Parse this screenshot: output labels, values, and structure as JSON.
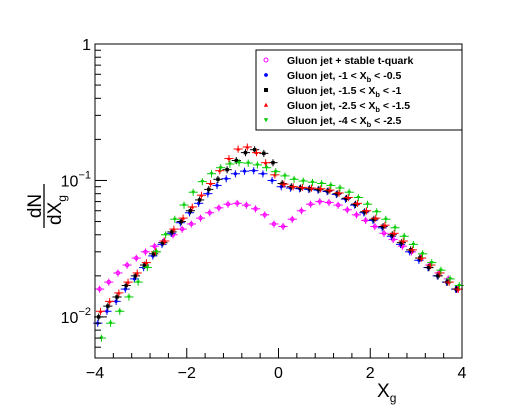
{
  "chart_data": {
    "type": "scatter",
    "title": "",
    "xlabel": {
      "main": "X",
      "sub": "g"
    },
    "ylabel": {
      "num": "dN",
      "den_main": "dX",
      "den_sub": "g"
    },
    "xlim": [
      -4,
      4
    ],
    "ylim": [
      0.005,
      1
    ],
    "yscale": "log",
    "grid": false,
    "legend_position": "top-right",
    "x_ticks": [
      {
        "value": -4,
        "label": "−4"
      },
      {
        "value": -2,
        "label": "−2"
      },
      {
        "value": 0,
        "label": "0"
      },
      {
        "value": 2,
        "label": "2"
      },
      {
        "value": 4,
        "label": "4"
      }
    ],
    "y_ticks": [
      {
        "value": 0.01,
        "base": "10",
        "exp": "−2"
      },
      {
        "value": 0.1,
        "base": "10",
        "exp": "−1"
      },
      {
        "value": 1,
        "base": "1",
        "exp": ""
      }
    ],
    "series": [
      {
        "name": {
          "pre": "Gluon jet + stable t-quark",
          "sub": "",
          "post": ""
        },
        "color": "#ff00ff",
        "marker": "open-circle",
        "offset": 0.0,
        "x": [
          -3.9,
          -3.7,
          -3.5,
          -3.3,
          -3.1,
          -2.9,
          -2.7,
          -2.5,
          -2.3,
          -2.1,
          -1.9,
          -1.7,
          -1.5,
          -1.3,
          -1.1,
          -0.9,
          -0.7,
          -0.5,
          -0.3,
          -0.1,
          0.1,
          0.3,
          0.5,
          0.7,
          0.9,
          1.1,
          1.3,
          1.5,
          1.7,
          1.9,
          2.1,
          2.3,
          2.5,
          2.7,
          2.9,
          3.1,
          3.3,
          3.5,
          3.7,
          3.9
        ],
        "y": [
          0.016,
          0.018,
          0.021,
          0.024,
          0.027,
          0.03,
          0.033,
          0.036,
          0.04,
          0.044,
          0.048,
          0.053,
          0.058,
          0.063,
          0.067,
          0.068,
          0.066,
          0.062,
          0.056,
          0.048,
          0.046,
          0.052,
          0.06,
          0.067,
          0.07,
          0.069,
          0.066,
          0.061,
          0.056,
          0.051,
          0.046,
          0.041,
          0.037,
          0.033,
          0.03,
          0.027,
          0.024,
          0.021,
          0.019,
          0.016
        ]
      },
      {
        "name": {
          "pre": "Gluon jet, -1 < X",
          "sub": "b",
          "post": " < -0.5"
        },
        "color": "#0000ff",
        "marker": "filled-circle",
        "offset": -0.04,
        "x": [
          -3.9,
          -3.7,
          -3.5,
          -3.3,
          -3.1,
          -2.9,
          -2.7,
          -2.5,
          -2.3,
          -2.1,
          -1.9,
          -1.7,
          -1.5,
          -1.3,
          -1.1,
          -0.9,
          -0.7,
          -0.5,
          -0.3,
          -0.1,
          0.1,
          0.3,
          0.5,
          0.7,
          0.9,
          1.1,
          1.3,
          1.5,
          1.7,
          1.9,
          2.1,
          2.3,
          2.5,
          2.7,
          2.9,
          3.1,
          3.3,
          3.5,
          3.7,
          3.9
        ],
        "y": [
          0.009,
          0.011,
          0.013,
          0.016,
          0.019,
          0.023,
          0.028,
          0.034,
          0.041,
          0.049,
          0.058,
          0.068,
          0.08,
          0.092,
          0.103,
          0.112,
          0.117,
          0.118,
          0.112,
          0.1,
          0.09,
          0.088,
          0.087,
          0.086,
          0.085,
          0.083,
          0.079,
          0.073,
          0.066,
          0.058,
          0.051,
          0.045,
          0.039,
          0.034,
          0.03,
          0.026,
          0.023,
          0.02,
          0.018,
          0.016
        ]
      },
      {
        "name": {
          "pre": "Gluon jet, -1.5 < X",
          "sub": "b",
          "post": " < -1"
        },
        "color": "#000000",
        "marker": "filled-square",
        "offset": -0.02,
        "x": [
          -3.9,
          -3.7,
          -3.5,
          -3.3,
          -3.1,
          -2.9,
          -2.7,
          -2.5,
          -2.3,
          -2.1,
          -1.9,
          -1.7,
          -1.5,
          -1.3,
          -1.1,
          -0.9,
          -0.7,
          -0.5,
          -0.3,
          -0.1,
          0.1,
          0.3,
          0.5,
          0.7,
          0.9,
          1.1,
          1.3,
          1.5,
          1.7,
          1.9,
          2.1,
          2.3,
          2.5,
          2.7,
          2.9,
          3.1,
          3.3,
          3.5,
          3.7,
          3.9
        ],
        "y": [
          0.01,
          0.012,
          0.014,
          0.017,
          0.02,
          0.024,
          0.029,
          0.035,
          0.042,
          0.05,
          0.06,
          0.072,
          0.086,
          0.102,
          0.12,
          0.14,
          0.16,
          0.168,
          0.158,
          0.135,
          0.095,
          0.09,
          0.088,
          0.087,
          0.086,
          0.084,
          0.08,
          0.074,
          0.067,
          0.059,
          0.052,
          0.046,
          0.04,
          0.035,
          0.031,
          0.027,
          0.023,
          0.02,
          0.018,
          0.016
        ]
      },
      {
        "name": {
          "pre": "Gluon jet, -2.5 < X",
          "sub": "b",
          "post": " < -1.5"
        },
        "color": "#ff0000",
        "marker": "filled-triangle",
        "offset": 0.02,
        "x": [
          -3.9,
          -3.7,
          -3.5,
          -3.3,
          -3.1,
          -2.9,
          -2.7,
          -2.5,
          -2.3,
          -2.1,
          -1.9,
          -1.7,
          -1.5,
          -1.3,
          -1.1,
          -0.9,
          -0.7,
          -0.5,
          -0.3,
          -0.1,
          0.1,
          0.3,
          0.5,
          0.7,
          0.9,
          1.1,
          1.3,
          1.5,
          1.7,
          1.9,
          2.1,
          2.3,
          2.5,
          2.7,
          2.9,
          3.1,
          3.3,
          3.5,
          3.7,
          3.9
        ],
        "y": [
          0.011,
          0.013,
          0.015,
          0.018,
          0.021,
          0.025,
          0.03,
          0.036,
          0.044,
          0.053,
          0.064,
          0.078,
          0.095,
          0.118,
          0.145,
          0.17,
          0.176,
          0.16,
          0.135,
          0.11,
          0.094,
          0.09,
          0.089,
          0.088,
          0.087,
          0.085,
          0.081,
          0.075,
          0.068,
          0.06,
          0.053,
          0.047,
          0.041,
          0.036,
          0.031,
          0.027,
          0.024,
          0.021,
          0.018,
          0.016
        ]
      },
      {
        "name": {
          "pre": "Gluon jet, -4 < X",
          "sub": "b",
          "post": " < -2.5"
        },
        "color": "#00cc00",
        "marker": "filled-triangle-down",
        "offset": 0.04,
        "x": [
          -3.9,
          -3.7,
          -3.5,
          -3.3,
          -3.1,
          -2.9,
          -2.7,
          -2.5,
          -2.3,
          -2.1,
          -1.9,
          -1.7,
          -1.5,
          -1.3,
          -1.1,
          -0.9,
          -0.7,
          -0.5,
          -0.3,
          -0.1,
          0.1,
          0.3,
          0.5,
          0.7,
          0.9,
          1.1,
          1.3,
          1.5,
          1.7,
          1.9,
          2.1,
          2.3,
          2.5,
          2.7,
          2.9,
          3.1,
          3.3,
          3.5,
          3.7,
          3.9
        ],
        "y": [
          0.007,
          0.009,
          0.011,
          0.014,
          0.018,
          0.023,
          0.03,
          0.04,
          0.052,
          0.066,
          0.082,
          0.098,
          0.112,
          0.124,
          0.132,
          0.135,
          0.134,
          0.13,
          0.124,
          0.116,
          0.108,
          0.102,
          0.099,
          0.097,
          0.095,
          0.092,
          0.088,
          0.082,
          0.075,
          0.067,
          0.059,
          0.052,
          0.045,
          0.039,
          0.034,
          0.029,
          0.025,
          0.022,
          0.019,
          0.017
        ]
      }
    ]
  }
}
